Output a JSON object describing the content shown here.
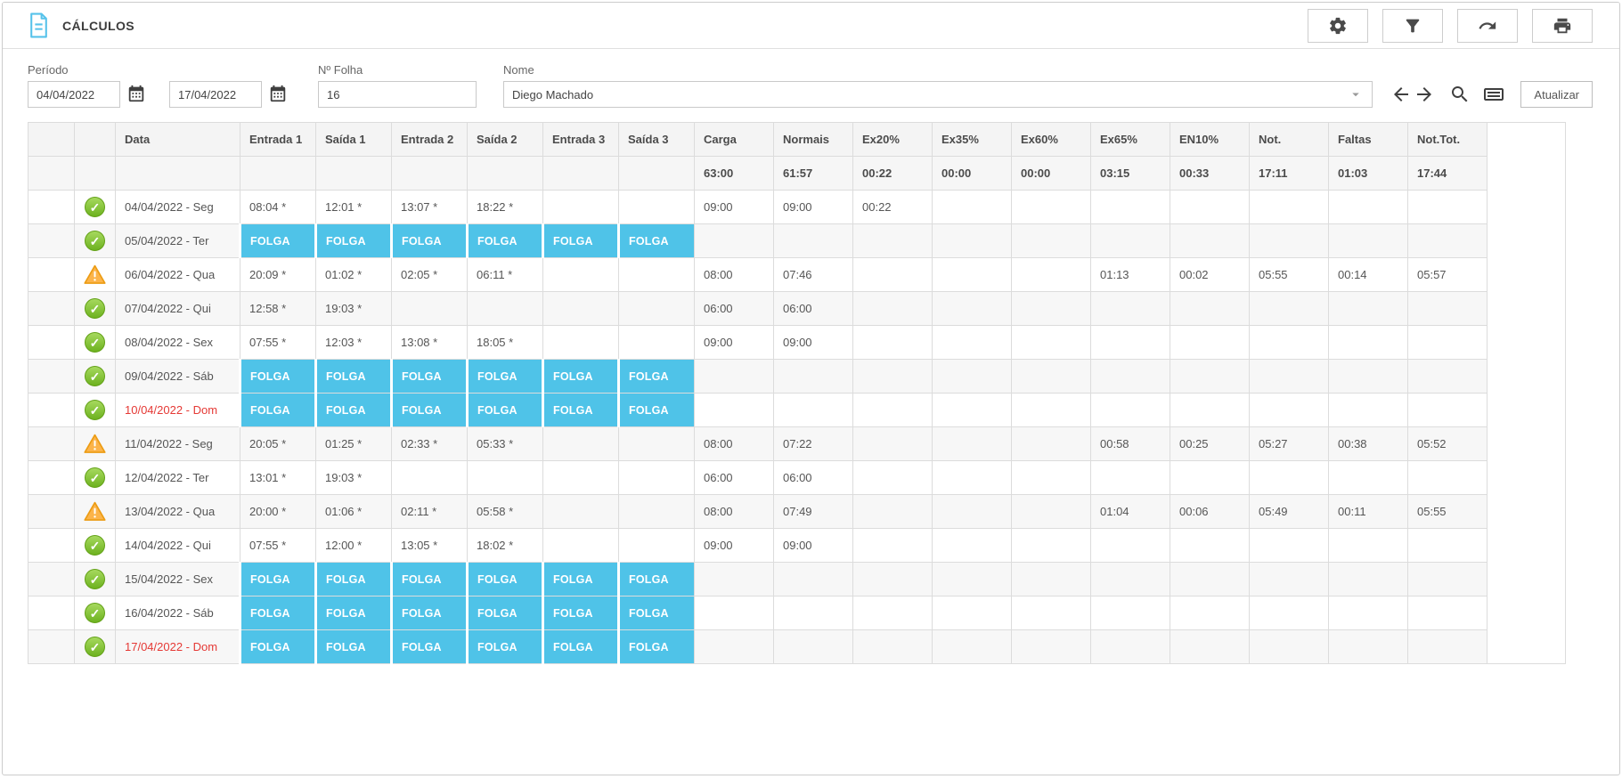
{
  "header": {
    "title": "CÁLCULOS",
    "toolbar_buttons": [
      "settings",
      "filter",
      "share",
      "print"
    ]
  },
  "filters": {
    "periodo_label": "Período",
    "date_from": "04/04/2022",
    "date_to": "17/04/2022",
    "folha_label": "Nº Folha",
    "folha_value": "16",
    "nome_label": "Nome",
    "nome_value": "Diego Machado",
    "atualizar_label": "Atualizar"
  },
  "colors": {
    "folga_cyan": "#4fc3e8",
    "sunday_red": "#e53935",
    "ok_green": "#6db21f",
    "warning_orange": "#fbb033",
    "title_icon_blue": "#56c2ea"
  },
  "table": {
    "folga_label": "FOLGA",
    "columns": [
      "",
      "",
      "Data",
      "Entrada 1",
      "Saída 1",
      "Entrada 2",
      "Saída 2",
      "Entrada 3",
      "Saída 3",
      "Carga",
      "Normais",
      "Ex20%",
      "Ex35%",
      "Ex60%",
      "Ex65%",
      "EN10%",
      "Not.",
      "Faltas",
      "Not.Tot.",
      ""
    ],
    "totals": [
      "63:00",
      "61:57",
      "00:22",
      "00:00",
      "00:00",
      "03:15",
      "00:33",
      "17:11",
      "01:03",
      "17:44"
    ],
    "rows": [
      {
        "status": "ok",
        "date": "04/04/2022 - Seg",
        "red": false,
        "folga": false,
        "times": [
          "08:04 *",
          "12:01 *",
          "13:07 *",
          "18:22 *",
          "",
          ""
        ],
        "values": [
          "09:00",
          "09:00",
          "00:22",
          "",
          "",
          "",
          "",
          "",
          "",
          ""
        ]
      },
      {
        "status": "ok",
        "date": "05/04/2022 - Ter",
        "red": false,
        "folga": true,
        "times": [
          "",
          "",
          "",
          "",
          "",
          ""
        ],
        "values": [
          "",
          "",
          "",
          "",
          "",
          "",
          "",
          "",
          "",
          ""
        ]
      },
      {
        "status": "warning",
        "date": "06/04/2022 - Qua",
        "red": false,
        "folga": false,
        "times": [
          "20:09 *",
          "01:02 *",
          "02:05 *",
          "06:11 *",
          "",
          ""
        ],
        "values": [
          "08:00",
          "07:46",
          "",
          "",
          "",
          "01:13",
          "00:02",
          "05:55",
          "00:14",
          "05:57"
        ]
      },
      {
        "status": "ok",
        "date": "07/04/2022 - Qui",
        "red": false,
        "folga": false,
        "times": [
          "12:58 *",
          "19:03 *",
          "",
          "",
          "",
          ""
        ],
        "values": [
          "06:00",
          "06:00",
          "",
          "",
          "",
          "",
          "",
          "",
          "",
          ""
        ]
      },
      {
        "status": "ok",
        "date": "08/04/2022 - Sex",
        "red": false,
        "folga": false,
        "times": [
          "07:55 *",
          "12:03 *",
          "13:08 *",
          "18:05 *",
          "",
          ""
        ],
        "values": [
          "09:00",
          "09:00",
          "",
          "",
          "",
          "",
          "",
          "",
          "",
          ""
        ]
      },
      {
        "status": "ok",
        "date": "09/04/2022 - Sáb",
        "red": false,
        "folga": true,
        "times": [
          "",
          "",
          "",
          "",
          "",
          ""
        ],
        "values": [
          "",
          "",
          "",
          "",
          "",
          "",
          "",
          "",
          "",
          ""
        ]
      },
      {
        "status": "ok",
        "date": "10/04/2022 - Dom",
        "red": true,
        "folga": true,
        "times": [
          "",
          "",
          "",
          "",
          "",
          ""
        ],
        "values": [
          "",
          "",
          "",
          "",
          "",
          "",
          "",
          "",
          "",
          ""
        ]
      },
      {
        "status": "warning",
        "date": "11/04/2022 - Seg",
        "red": false,
        "folga": false,
        "times": [
          "20:05 *",
          "01:25 *",
          "02:33 *",
          "05:33 *",
          "",
          ""
        ],
        "values": [
          "08:00",
          "07:22",
          "",
          "",
          "",
          "00:58",
          "00:25",
          "05:27",
          "00:38",
          "05:52"
        ]
      },
      {
        "status": "ok",
        "date": "12/04/2022 - Ter",
        "red": false,
        "folga": false,
        "times": [
          "13:01 *",
          "19:03 *",
          "",
          "",
          "",
          ""
        ],
        "values": [
          "06:00",
          "06:00",
          "",
          "",
          "",
          "",
          "",
          "",
          "",
          ""
        ]
      },
      {
        "status": "warning",
        "date": "13/04/2022 - Qua",
        "red": false,
        "folga": false,
        "times": [
          "20:00 *",
          "01:06 *",
          "02:11 *",
          "05:58 *",
          "",
          ""
        ],
        "values": [
          "08:00",
          "07:49",
          "",
          "",
          "",
          "01:04",
          "00:06",
          "05:49",
          "00:11",
          "05:55"
        ]
      },
      {
        "status": "ok",
        "date": "14/04/2022 - Qui",
        "red": false,
        "folga": false,
        "times": [
          "07:55 *",
          "12:00 *",
          "13:05 *",
          "18:02 *",
          "",
          ""
        ],
        "values": [
          "09:00",
          "09:00",
          "",
          "",
          "",
          "",
          "",
          "",
          "",
          ""
        ]
      },
      {
        "status": "ok",
        "date": "15/04/2022 - Sex",
        "red": false,
        "folga": true,
        "times": [
          "",
          "",
          "",
          "",
          "",
          ""
        ],
        "values": [
          "",
          "",
          "",
          "",
          "",
          "",
          "",
          "",
          "",
          ""
        ]
      },
      {
        "status": "ok",
        "date": "16/04/2022 - Sáb",
        "red": false,
        "folga": true,
        "times": [
          "",
          "",
          "",
          "",
          "",
          ""
        ],
        "values": [
          "",
          "",
          "",
          "",
          "",
          "",
          "",
          "",
          "",
          ""
        ]
      },
      {
        "status": "ok",
        "date": "17/04/2022 - Dom",
        "red": true,
        "folga": true,
        "times": [
          "",
          "",
          "",
          "",
          "",
          ""
        ],
        "values": [
          "",
          "",
          "",
          "",
          "",
          "",
          "",
          "",
          "",
          ""
        ]
      }
    ]
  }
}
